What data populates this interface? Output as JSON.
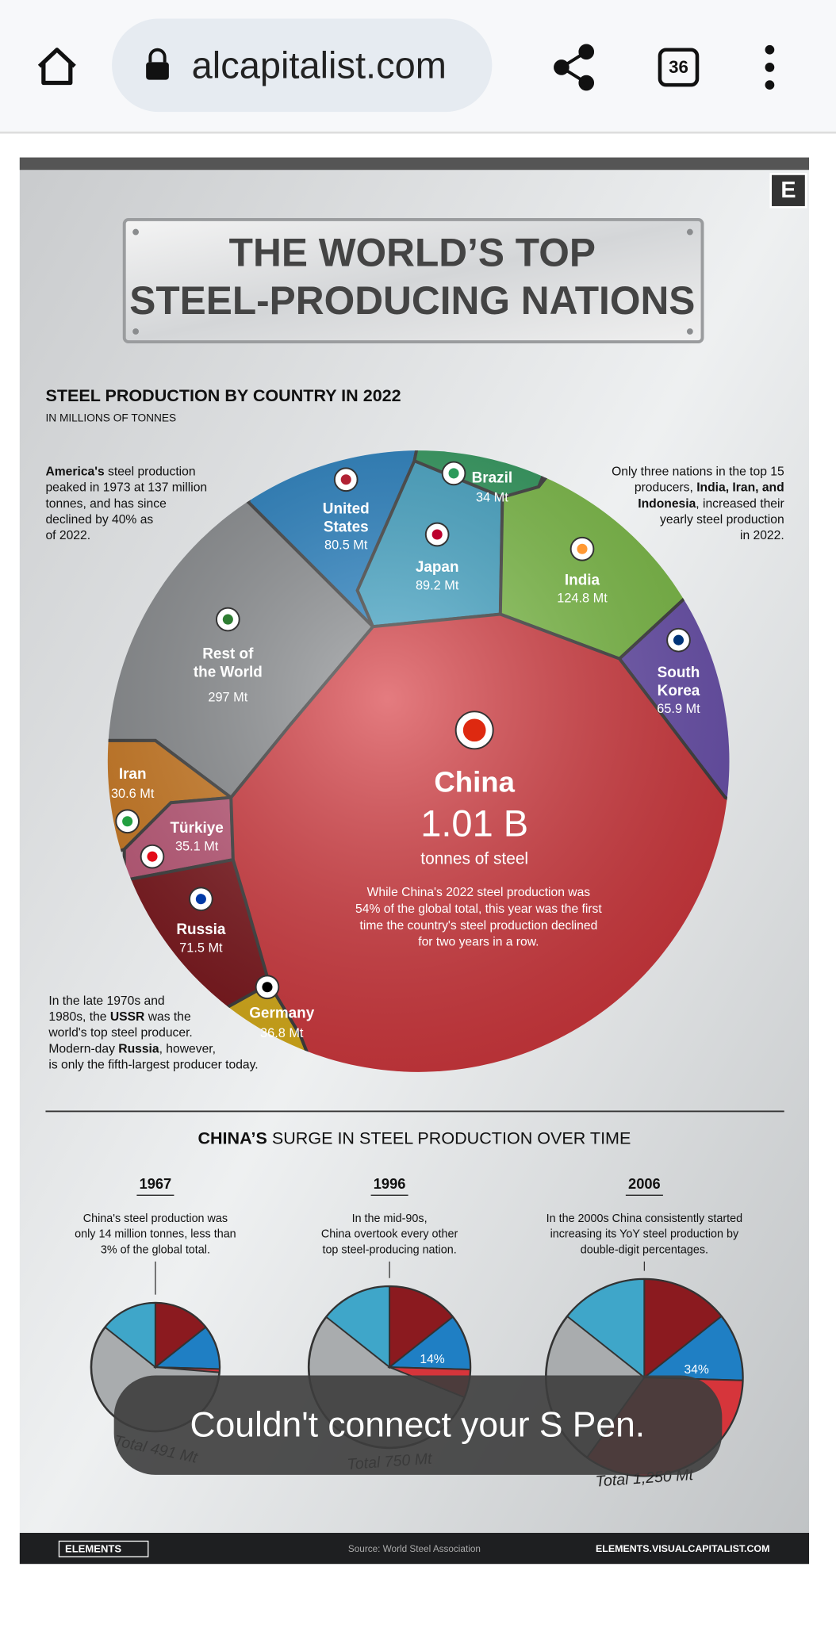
{
  "browser": {
    "url": "alcapitalist.com",
    "tab_count": "36"
  },
  "infographic": {
    "badge": "E",
    "title": [
      "THE WORLD’S TOP",
      "STEEL-PRODUCING NATIONS"
    ],
    "subtitle": "STEEL PRODUCTION BY COUNTRY IN 2022",
    "units": "IN MILLIONS OF TONNES",
    "note_left_top": [
      [
        {
          "text": "America's",
          "bold": true
        },
        " steel production"
      ],
      [
        "peaked in 1973 at 137 million"
      ],
      [
        "tonnes, and has since"
      ],
      [
        "declined by 40% as"
      ],
      [
        "of 2022."
      ]
    ],
    "note_right_top": [
      [
        "Only three nations in the top 15"
      ],
      [
        "producers, ",
        {
          "text": "India, Iran, and",
          "bold": true
        }
      ],
      [
        {
          "text": "Indonesia",
          "bold": true
        },
        ", increased their"
      ],
      [
        "yearly steel production"
      ],
      [
        "in 2022."
      ]
    ],
    "note_left_bottom": [
      [
        "In the late 1970s and"
      ],
      [
        "1980s, the ",
        {
          "text": "USSR",
          "bold": true
        },
        " was the"
      ],
      [
        "world's top steel producer."
      ],
      [
        "Modern-day ",
        {
          "text": "Russia",
          "bold": true
        },
        ", however,"
      ],
      [
        "is only the fifth-largest producer today."
      ]
    ],
    "countries": [
      {
        "name": [
          "United",
          "States"
        ],
        "value": "80.5 Mt"
      },
      {
        "name": [
          "Brazil"
        ],
        "value": "34 Mt"
      },
      {
        "name": [
          "Japan"
        ],
        "value": "89.2 Mt"
      },
      {
        "name": [
          "India"
        ],
        "value": "124.8 Mt"
      },
      {
        "name": [
          "South",
          "Korea"
        ],
        "value": "65.9 Mt"
      },
      {
        "name": [
          "Rest of",
          "the World"
        ],
        "value": "297 Mt"
      },
      {
        "name": [
          "Iran"
        ],
        "value": "30.6 Mt"
      },
      {
        "name": [
          "Türkiye"
        ],
        "value": "35.1 Mt"
      },
      {
        "name": [
          "Russia"
        ],
        "value": "71.5 Mt"
      },
      {
        "name": [
          "Germany"
        ],
        "value": "36.8 Mt"
      }
    ],
    "china": {
      "name": "China",
      "value": "1.01 B",
      "unit": "tonnes of steel",
      "note": [
        "While China's 2022 steel production was",
        "54% of the global total, this year was the first",
        "time the country's steel production declined",
        "for two years in a row."
      ]
    },
    "surge": {
      "heading_bold": "CHINA’S",
      "heading_rest": " SURGE IN STEEL PRODUCTION OVER TIME",
      "periods": [
        {
          "year": "1967",
          "text": [
            "China's steel production was",
            "only 14 million tonnes, less than",
            "3% of the global total."
          ],
          "total": "Total 491 Mt"
        },
        {
          "year": "1996",
          "text": [
            "In the mid-90s,",
            "China overtook every other",
            "top steel-producing nation."
          ],
          "total": "Total 750 Mt",
          "share": "14%"
        },
        {
          "year": "2006",
          "text": [
            "In the 2000s China consistently started",
            "increasing its YoY steel production by",
            "double-digit percentages."
          ],
          "total": "Total 1,250 Mt",
          "share": "34%"
        }
      ]
    },
    "footer": {
      "brand": "ELEMENTS",
      "source": "Source: World Steel Association",
      "site": "ELEMENTS.VISUALCAPITALIST.COM"
    }
  },
  "toast": "Couldn't connect your S Pen."
}
